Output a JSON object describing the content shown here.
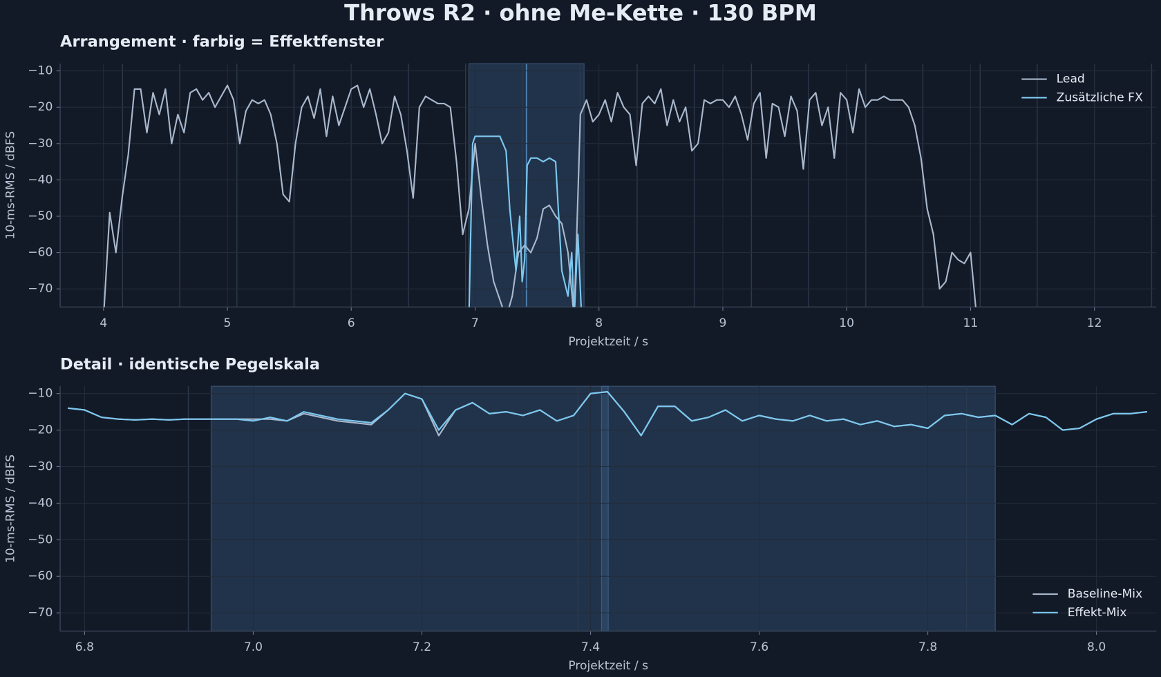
{
  "title": "Throws R2 · ohne Me-Kette · 130 BPM",
  "chart_data": [
    {
      "type": "line",
      "title": "Arrangement · farbig = Effektfenster",
      "xlabel": "Projektzeit / s",
      "ylabel": "10-ms-RMS / dBFS",
      "xlim": [
        3.65,
        12.5
      ],
      "ylim": [
        -75,
        -8
      ],
      "xticks": [
        4,
        5,
        6,
        7,
        8,
        9,
        10,
        11,
        12
      ],
      "yticks": [
        {
          "value": -10,
          "label": "−10"
        },
        {
          "value": -20,
          "label": "−20"
        },
        {
          "value": -30,
          "label": "−30"
        },
        {
          "value": -40,
          "label": "−40"
        },
        {
          "value": -50,
          "label": "−50"
        },
        {
          "value": -60,
          "label": "−60"
        },
        {
          "value": -70,
          "label": "−70"
        }
      ],
      "grid": true,
      "legend": "upper right",
      "beat_lines": [
        4.154,
        4.615,
        5.077,
        5.538,
        6.0,
        6.462,
        6.923,
        7.385,
        7.846,
        8.308,
        8.769,
        9.231,
        9.692,
        10.154,
        10.615,
        11.077,
        11.538,
        12.0,
        12.462
      ],
      "effect_windows": [
        [
          6.95,
          7.88
        ]
      ],
      "markers": [
        7.415
      ],
      "series": [
        {
          "name": "Lead",
          "color": "#a9b8cc",
          "x": [
            4.0,
            4.05,
            4.1,
            4.15,
            4.2,
            4.25,
            4.3,
            4.35,
            4.4,
            4.45,
            4.5,
            4.55,
            4.6,
            4.65,
            4.7,
            4.75,
            4.8,
            4.85,
            4.9,
            4.95,
            5.0,
            5.05,
            5.1,
            5.15,
            5.2,
            5.25,
            5.3,
            5.35,
            5.4,
            5.45,
            5.5,
            5.55,
            5.6,
            5.65,
            5.7,
            5.75,
            5.8,
            5.85,
            5.9,
            5.95,
            6.0,
            6.05,
            6.1,
            6.15,
            6.2,
            6.25,
            6.3,
            6.35,
            6.4,
            6.45,
            6.5,
            6.55,
            6.6,
            6.65,
            6.7,
            6.75,
            6.8,
            6.85,
            6.9,
            6.95,
            7.0,
            7.05,
            7.1,
            7.15,
            7.2,
            7.25,
            7.3,
            7.35,
            7.4,
            7.45,
            7.5,
            7.55,
            7.6,
            7.65,
            7.7,
            7.75,
            7.8,
            7.85,
            7.9,
            7.95,
            8.0,
            8.05,
            8.1,
            8.15,
            8.2,
            8.25,
            8.3,
            8.35,
            8.4,
            8.45,
            8.5,
            8.55,
            8.6,
            8.65,
            8.7,
            8.75,
            8.8,
            8.85,
            8.9,
            8.95,
            9.0,
            9.05,
            9.1,
            9.15,
            9.2,
            9.25,
            9.3,
            9.35,
            9.4,
            9.45,
            9.5,
            9.55,
            9.6,
            9.65,
            9.7,
            9.75,
            9.8,
            9.85,
            9.9,
            9.95,
            10.0,
            10.05,
            10.1,
            10.15,
            10.2,
            10.25,
            10.3,
            10.35,
            10.4,
            10.45,
            10.5,
            10.55,
            10.6,
            10.65,
            10.7,
            10.75,
            10.8,
            10.85,
            10.9,
            10.95,
            11.0,
            11.05
          ],
          "values": [
            -78,
            -49,
            -60,
            -45,
            -33,
            -15,
            -15,
            -27,
            -16,
            -22,
            -15,
            -30,
            -22,
            -27,
            -16,
            -15,
            -18,
            -16,
            -20,
            -17,
            -14,
            -18,
            -30,
            -21,
            -18,
            -19,
            -18,
            -22,
            -30,
            -44,
            -46,
            -30,
            -20,
            -17,
            -23,
            -15,
            -28,
            -17,
            -25,
            -20,
            -15,
            -14,
            -20,
            -15,
            -22,
            -30,
            -27,
            -17,
            -22,
            -32,
            -45,
            -20,
            -17,
            -18,
            -19,
            -19,
            -20,
            -35,
            -55,
            -48,
            -30,
            -45,
            -58,
            -68,
            -73,
            -78,
            -72,
            -60,
            -58,
            -60,
            -56,
            -48,
            -47,
            -50,
            -52,
            -60,
            -78,
            -22,
            -18,
            -24,
            -22,
            -18,
            -24,
            -16,
            -20,
            -22,
            -36,
            -19,
            -17,
            -19,
            -15,
            -25,
            -18,
            -24,
            -20,
            -32,
            -30,
            -18,
            -19,
            -18,
            -18,
            -20,
            -17,
            -22,
            -29,
            -19,
            -16,
            -34,
            -19,
            -20,
            -28,
            -17,
            -21,
            -37,
            -18,
            -16,
            -25,
            -20,
            -34,
            -16,
            -18,
            -27,
            -15,
            -20,
            -18,
            -18,
            -17,
            -18,
            -18,
            -18,
            -20,
            -25,
            -34,
            -48,
            -55,
            -70,
            -68,
            -60,
            -62,
            -63,
            -60,
            -78
          ]
        },
        {
          "name": "Zusätzliche FX",
          "color": "#7cc8f0",
          "x": [
            6.95,
            6.98,
            7.0,
            7.05,
            7.1,
            7.15,
            7.2,
            7.25,
            7.28,
            7.3,
            7.33,
            7.36,
            7.38,
            7.4,
            7.42,
            7.45,
            7.5,
            7.55,
            7.6,
            7.65,
            7.7,
            7.75,
            7.78,
            7.8,
            7.83,
            7.86
          ],
          "values": [
            -78,
            -30,
            -28,
            -28,
            -28,
            -28,
            -28,
            -32,
            -48,
            -55,
            -65,
            -50,
            -68,
            -62,
            -36,
            -34,
            -34,
            -35,
            -34,
            -35,
            -65,
            -72,
            -60,
            -78,
            -55,
            -78
          ]
        }
      ]
    },
    {
      "type": "line",
      "title": "Detail · identische Pegelskala",
      "xlabel": "Projektzeit / s",
      "ylabel": "10-ms-RMS / dBFS",
      "xlim": [
        6.771,
        8.071
      ],
      "ylim": [
        -75,
        -8
      ],
      "xticks": [
        6.8,
        {
          "value": 7,
          "label": "7.0"
        },
        7.2,
        7.4,
        7.6,
        7.8,
        {
          "value": 8,
          "label": "8.0"
        }
      ],
      "yticks": [
        {
          "value": -10,
          "label": "−10"
        },
        {
          "value": -20,
          "label": "−20"
        },
        {
          "value": -30,
          "label": "−30"
        },
        {
          "value": -40,
          "label": "−40"
        },
        {
          "value": -50,
          "label": "−50"
        },
        {
          "value": -60,
          "label": "−60"
        },
        {
          "value": -70,
          "label": "−70"
        }
      ],
      "grid": true,
      "legend": "lower right",
      "beat_lines": [
        6.923,
        7.385,
        7.846
      ],
      "effect_windows": [
        [
          6.95,
          7.88
        ],
        [
          7.413,
          7.421
        ]
      ],
      "markers": [],
      "series": [
        {
          "name": "Baseline-Mix",
          "color": "#a9b8cc",
          "x": [
            6.78,
            6.8,
            6.82,
            6.84,
            6.86,
            6.88,
            6.9,
            6.92,
            6.94,
            6.96,
            6.98,
            7.0,
            7.02,
            7.04,
            7.06,
            7.08,
            7.1,
            7.12,
            7.14,
            7.16,
            7.18,
            7.2,
            7.22,
            7.24,
            7.26,
            7.28,
            7.3,
            7.32,
            7.34,
            7.36,
            7.38,
            7.4,
            7.42,
            7.44,
            7.46,
            7.48,
            7.5,
            7.52,
            7.54,
            7.56,
            7.58,
            7.6,
            7.62,
            7.64,
            7.66,
            7.68,
            7.7,
            7.72,
            7.74,
            7.76,
            7.78,
            7.8,
            7.82,
            7.84,
            7.86,
            7.88,
            7.9,
            7.92,
            7.94,
            7.96,
            7.98,
            8.0,
            8.02,
            8.04,
            8.06
          ],
          "values": [
            -14,
            -14.5,
            -16.5,
            -17,
            -17.2,
            -17,
            -17.2,
            -17,
            -17,
            -17,
            -17,
            -17,
            -17,
            -17.5,
            -15.5,
            -16.5,
            -17.5,
            -18,
            -18.5,
            -14.5,
            -10,
            -11.5,
            -21.5,
            -14.5,
            -12.5,
            -15.5,
            -15,
            -16,
            -14.5,
            -17.5,
            -16,
            -10,
            -9.5,
            -15,
            -21.5,
            -13.5,
            -13.5,
            -17.5,
            -16.5,
            -14.5,
            -17.5,
            -16,
            -17,
            -17.5,
            -16,
            -17.5,
            -17,
            -18.5,
            -17.5,
            -19,
            -18.5,
            -19.5,
            -16,
            -15.5,
            -16.5,
            -16,
            -18.5,
            -15.5,
            -16.5,
            -20,
            -19.5,
            -17,
            -15.5,
            -15.5,
            -15
          ]
        },
        {
          "name": "Effekt-Mix",
          "color": "#7cc8f0",
          "x": [
            6.78,
            6.8,
            6.82,
            6.84,
            6.86,
            6.88,
            6.9,
            6.92,
            6.94,
            6.96,
            6.98,
            7.0,
            7.02,
            7.04,
            7.06,
            7.08,
            7.1,
            7.12,
            7.14,
            7.16,
            7.18,
            7.2,
            7.22,
            7.24,
            7.26,
            7.28,
            7.3,
            7.32,
            7.34,
            7.36,
            7.38,
            7.4,
            7.42,
            7.44,
            7.46,
            7.48,
            7.5,
            7.52,
            7.54,
            7.56,
            7.58,
            7.6,
            7.62,
            7.64,
            7.66,
            7.68,
            7.7,
            7.72,
            7.74,
            7.76,
            7.78,
            7.8,
            7.82,
            7.84,
            7.86,
            7.88,
            7.9,
            7.92,
            7.94,
            7.96,
            7.98,
            8.0,
            8.02,
            8.04,
            8.06
          ],
          "values": [
            -14,
            -14.5,
            -16.5,
            -17,
            -17.2,
            -17,
            -17.2,
            -17,
            -17,
            -17,
            -17,
            -17.5,
            -16.5,
            -17.5,
            -15,
            -16,
            -17,
            -17.5,
            -18,
            -14.5,
            -10,
            -11.5,
            -20,
            -14.5,
            -12.5,
            -15.5,
            -15,
            -16,
            -14.5,
            -17.5,
            -16,
            -10,
            -9.5,
            -15,
            -21.5,
            -13.5,
            -13.5,
            -17.5,
            -16.5,
            -14.5,
            -17.5,
            -16,
            -17,
            -17.5,
            -16,
            -17.5,
            -17,
            -18.5,
            -17.5,
            -19,
            -18.5,
            -19.5,
            -16,
            -15.5,
            -16.5,
            -16,
            -18.5,
            -15.5,
            -16.5,
            -20,
            -19.5,
            -17,
            -15.5,
            -15.5,
            -15
          ]
        }
      ]
    }
  ]
}
